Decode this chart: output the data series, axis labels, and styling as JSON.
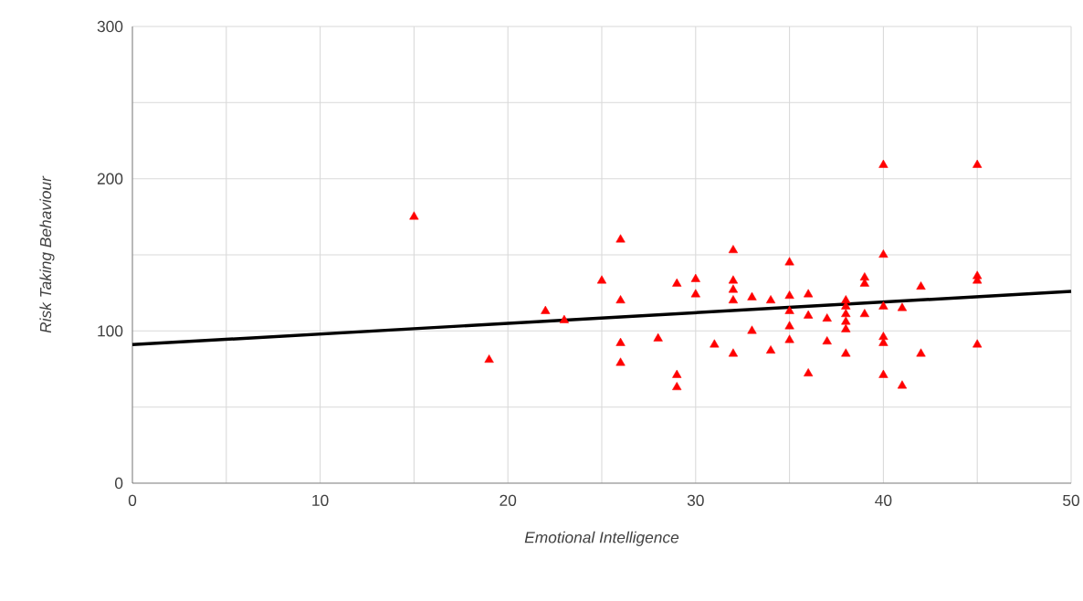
{
  "chart_data": {
    "type": "scatter",
    "xlabel": "Emotional Intelligence",
    "ylabel": "Risk Taking Behaviour",
    "xlim": [
      0,
      50
    ],
    "ylim": [
      0,
      300
    ],
    "xticks": [
      0,
      {
        "value": 5,
        "label": null
      },
      10,
      {
        "value": 15,
        "label": null
      },
      20,
      {
        "value": 25,
        "label": null
      },
      30,
      {
        "value": 35,
        "label": null
      },
      40,
      {
        "value": 45,
        "label": null
      },
      50
    ],
    "yticks": [
      0,
      {
        "value": 50,
        "label": null
      },
      100,
      {
        "value": 150,
        "label": null
      },
      200,
      {
        "value": 250,
        "label": null
      },
      300
    ],
    "grid": true,
    "series": [
      {
        "marker": "triangle",
        "color": "#ff0000",
        "x": [
          15,
          19,
          22,
          23,
          25,
          26,
          26,
          26,
          26,
          28,
          29,
          29,
          29,
          30,
          30,
          31,
          32,
          32,
          32,
          32,
          32,
          33,
          33,
          34,
          34,
          35,
          35,
          35,
          35,
          35,
          36,
          36,
          36,
          37,
          37,
          38,
          38,
          38,
          38,
          38,
          38,
          39,
          39,
          39,
          40,
          40,
          40,
          40,
          40,
          40,
          41,
          41,
          42,
          42,
          45,
          45,
          45,
          45
        ],
        "values": [
          175,
          81,
          113,
          107,
          133,
          160,
          120,
          92,
          79,
          95,
          131,
          71,
          63,
          134,
          124,
          91,
          153,
          133,
          127,
          120,
          85,
          122,
          100,
          120,
          87,
          145,
          123,
          113,
          103,
          94,
          124,
          110,
          72,
          108,
          93,
          120,
          116,
          111,
          106,
          101,
          85,
          135,
          131,
          111,
          209,
          150,
          116,
          96,
          92,
          71,
          115,
          64,
          129,
          85,
          209,
          136,
          133,
          91
        ]
      },
      {
        "type": "line",
        "marker": "none",
        "color": "#000000",
        "x": [
          0,
          50
        ],
        "values": [
          91,
          126
        ]
      }
    ]
  }
}
